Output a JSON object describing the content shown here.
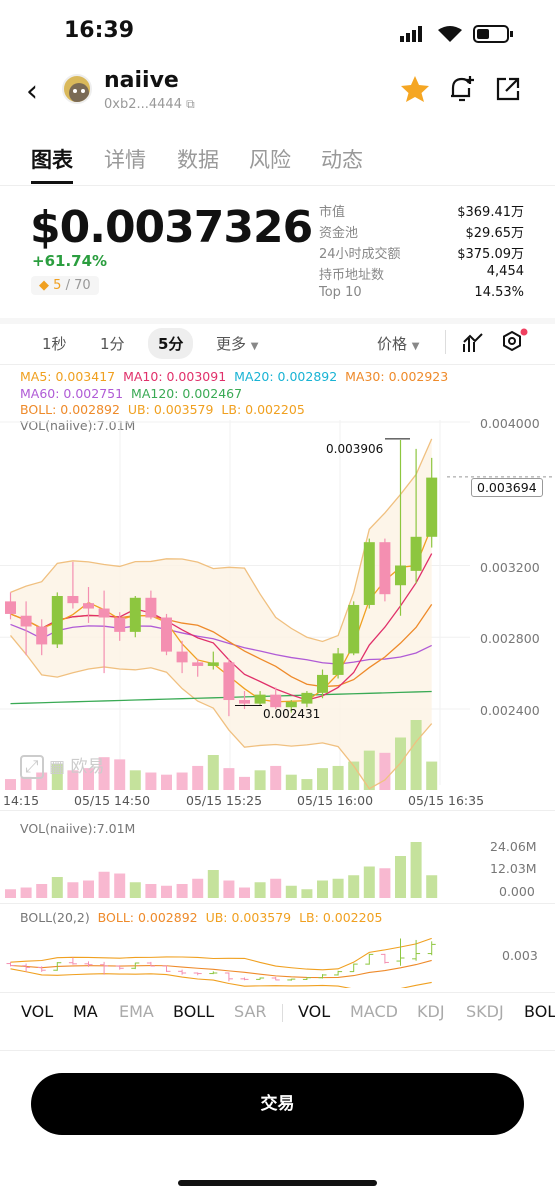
{
  "status": {
    "time": "16:39"
  },
  "token": {
    "name": "naiive",
    "address": "0xb2...4444"
  },
  "tabs": [
    "图表",
    "详情",
    "数据",
    "风险",
    "动态"
  ],
  "price": {
    "value": "$0.0037326",
    "change": "+61.74%",
    "rank": "5",
    "rank_total": "/ 70"
  },
  "stats": [
    {
      "label": "市值",
      "value": "$369.41万"
    },
    {
      "label": "资金池",
      "value": "$29.65万"
    },
    {
      "label": "24小时成交额",
      "value": "$375.09万"
    },
    {
      "label": "持币地址数",
      "value": "4,454"
    },
    {
      "label": "Top 10",
      "value": "14.53%"
    }
  ],
  "timeframes": {
    "t1": "1秒",
    "t2": "1分",
    "t3": "5分",
    "more": "更多",
    "price_type": "价格"
  },
  "legend": {
    "ma5": "MA5: 0.003417",
    "ma10": "MA10: 0.003091",
    "ma20": "MA20: 0.002892",
    "ma30": "MA30: 0.002923",
    "ma60": "MA60: 0.002751",
    "ma120": "MA120: 0.002467",
    "boll": "BOLL: 0.002892",
    "ub": "UB: 0.003579",
    "lb": "LB: 0.002205",
    "vol": "VOL(naiive):7.01M"
  },
  "axis": {
    "y": [
      "0.004000",
      "0.003200",
      "0.002800",
      "0.002400"
    ],
    "current": "0.003694",
    "high": "0.003906",
    "low": "0.002431",
    "x": [
      "14:15",
      "05/15 14:50",
      "05/15 15:25",
      "05/15 16:00",
      "05/15 16:35"
    ]
  },
  "watermark": "欧易",
  "vol_panel": {
    "title": "VOL(naiive):7.01M",
    "y": [
      "24.06M",
      "12.03M",
      "0.000"
    ]
  },
  "boll_panel": {
    "title": "BOLL(20,2)",
    "boll": "BOLL: 0.002892",
    "ub": "UB: 0.003579",
    "lb": "LB: 0.002205",
    "y": "0.003"
  },
  "indicators": {
    "main": [
      "VOL",
      "MA",
      "EMA",
      "BOLL",
      "SAR"
    ],
    "sub": [
      "VOL",
      "MACD",
      "KDJ",
      "SKDJ",
      "BOL"
    ]
  },
  "trade_button": "交易",
  "colors": {
    "up": "#8dc63f",
    "down": "#f48fb1",
    "ma5": "#f0a020",
    "ma10": "#e0306a",
    "ma20": "#19b3d4",
    "ma30": "#ee8a2a",
    "ma60": "#b05bd6",
    "ma120": "#3aaa55"
  },
  "chart_data": {
    "type": "candlestick",
    "interval": "5分",
    "candles": [
      {
        "o": 0.003,
        "h": 0.00305,
        "l": 0.0029,
        "c": 0.00293
      },
      {
        "o": 0.00292,
        "h": 0.003,
        "l": 0.0027,
        "c": 0.00286
      },
      {
        "o": 0.00286,
        "h": 0.0029,
        "l": 0.0027,
        "c": 0.00276
      },
      {
        "o": 0.00276,
        "h": 0.00305,
        "l": 0.00274,
        "c": 0.00303
      },
      {
        "o": 0.00303,
        "h": 0.00322,
        "l": 0.00296,
        "c": 0.00299
      },
      {
        "o": 0.00299,
        "h": 0.00308,
        "l": 0.00288,
        "c": 0.00296
      },
      {
        "o": 0.00296,
        "h": 0.00306,
        "l": 0.0026,
        "c": 0.00291
      },
      {
        "o": 0.00291,
        "h": 0.00294,
        "l": 0.00278,
        "c": 0.00283
      },
      {
        "o": 0.00283,
        "h": 0.00303,
        "l": 0.0028,
        "c": 0.00302
      },
      {
        "o": 0.00302,
        "h": 0.00306,
        "l": 0.0029,
        "c": 0.00291
      },
      {
        "o": 0.00291,
        "h": 0.00293,
        "l": 0.0027,
        "c": 0.00272
      },
      {
        "o": 0.00272,
        "h": 0.00278,
        "l": 0.0026,
        "c": 0.00266
      },
      {
        "o": 0.00266,
        "h": 0.00268,
        "l": 0.00258,
        "c": 0.00264
      },
      {
        "o": 0.00264,
        "h": 0.00272,
        "l": 0.00262,
        "c": 0.00266
      },
      {
        "o": 0.00266,
        "h": 0.00268,
        "l": 0.00236,
        "c": 0.00245
      },
      {
        "o": 0.00245,
        "h": 0.0025,
        "l": 0.0024,
        "c": 0.00243
      },
      {
        "o": 0.00243,
        "h": 0.0025,
        "l": 0.00242,
        "c": 0.00248
      },
      {
        "o": 0.00248,
        "h": 0.00252,
        "l": 0.0024,
        "c": 0.00241
      },
      {
        "o": 0.00241,
        "h": 0.00245,
        "l": 0.00238,
        "c": 0.00244
      },
      {
        "o": 0.00243,
        "h": 0.0025,
        "l": 0.00241,
        "c": 0.00249
      },
      {
        "o": 0.00249,
        "h": 0.00262,
        "l": 0.00246,
        "c": 0.00259
      },
      {
        "o": 0.00259,
        "h": 0.00274,
        "l": 0.00257,
        "c": 0.00271
      },
      {
        "o": 0.00271,
        "h": 0.003,
        "l": 0.0027,
        "c": 0.00298
      },
      {
        "o": 0.00298,
        "h": 0.00335,
        "l": 0.00296,
        "c": 0.00333
      },
      {
        "o": 0.00333,
        "h": 0.00335,
        "l": 0.003,
        "c": 0.00304
      },
      {
        "o": 0.00309,
        "h": 0.0039,
        "l": 0.00292,
        "c": 0.0032
      },
      {
        "o": 0.00317,
        "h": 0.00385,
        "l": 0.0031,
        "c": 0.00336
      },
      {
        "o": 0.00336,
        "h": 0.0038,
        "l": 0.0033,
        "c": 0.00369
      }
    ],
    "volume": [
      0.5,
      0.6,
      0.8,
      1.2,
      0.9,
      1.0,
      1.5,
      1.4,
      0.9,
      0.8,
      0.7,
      0.8,
      1.1,
      1.6,
      1.0,
      0.6,
      0.9,
      1.1,
      0.7,
      0.5,
      1.0,
      1.1,
      1.3,
      1.8,
      1.7,
      2.4,
      3.2,
      1.3
    ],
    "ylim": [
      0.0022,
      0.00405
    ]
  }
}
